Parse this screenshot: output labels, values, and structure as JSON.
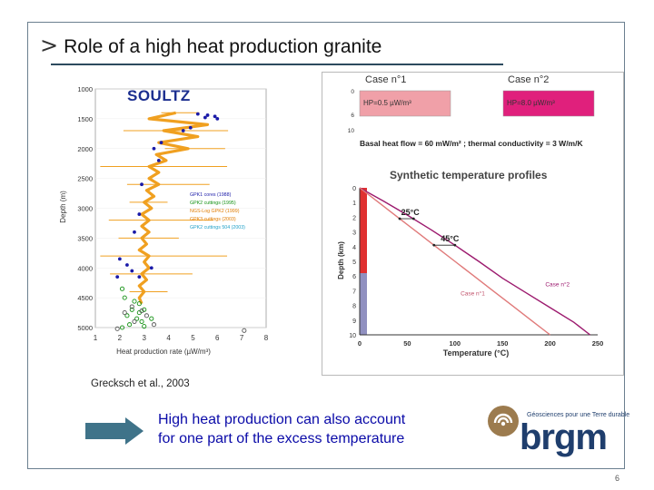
{
  "slide": {
    "title": "Role of a high heat production granite",
    "title_marker": ">",
    "left_figure_label": "SOULTZ",
    "citation": "Grecksch et al., 2003",
    "conclusion_line1": "High heat production can also account",
    "conclusion_line2": "for one part of the excess temperature",
    "page_number": "6"
  },
  "logo": {
    "name": "brgm",
    "tagline": "Géosciences pour une Terre durable",
    "colors": {
      "primary": "#1f3e6d",
      "accent": "#9c7b4e"
    }
  },
  "colors": {
    "accent": "#2c4a5e",
    "arrow": "#3f7389",
    "conclusion_text": "#0a0aa8"
  },
  "chart_data": [
    {
      "type": "scatter",
      "title": "",
      "xlabel": "Heat production rate (µW/m³)",
      "ylabel": "Depth (m)",
      "xlim": [
        1,
        8
      ],
      "ylim": [
        1000,
        5000
      ],
      "yreverse": true,
      "x_ticks": [
        1,
        2,
        3,
        4,
        5,
        6,
        7,
        8
      ],
      "x_tick_labels": [
        "1",
        "2",
        "3",
        "4",
        "5",
        "6",
        "7",
        "8"
      ],
      "y_ticks": [
        1000,
        1500,
        2000,
        2500,
        3000,
        3500,
        4000,
        4500,
        5000
      ],
      "legend": [
        "GPK1 cores (1988)",
        "GPK2 cuttings (1995)",
        "NGS-Log GPK2 (1999)",
        "GPK3 cuttings (2003)",
        "GPK2 cuttings 504 (2003)"
      ],
      "legend_colors": [
        "#1a1aa8",
        "#109010",
        "#e07b00",
        "#e07b00",
        "#20a0c8"
      ],
      "series": [
        {
          "name": "NGS-Log GPK2 (1999)",
          "marker": "line",
          "color": "#f0a020",
          "points": [
            [
              4.3,
              1400
            ],
            [
              3.2,
              1500
            ],
            [
              5.6,
              1600
            ],
            [
              3.8,
              1700
            ],
            [
              5.2,
              1800
            ],
            [
              3.6,
              1900
            ],
            [
              4.8,
              2000
            ],
            [
              3.5,
              2100
            ],
            [
              3.9,
              2200
            ],
            [
              3.2,
              2300
            ],
            [
              3.6,
              2400
            ],
            [
              3.2,
              2500
            ],
            [
              3.6,
              2600
            ],
            [
              3.1,
              2700
            ],
            [
              3.4,
              2800
            ],
            [
              3.0,
              2900
            ],
            [
              3.3,
              3000
            ],
            [
              2.9,
              3100
            ],
            [
              3.2,
              3200
            ],
            [
              2.9,
              3300
            ],
            [
              3.2,
              3400
            ],
            [
              2.9,
              3500
            ],
            [
              3.1,
              3600
            ],
            [
              2.8,
              3700
            ],
            [
              3.2,
              3800
            ],
            [
              3.0,
              3900
            ],
            [
              3.2,
              4000
            ],
            [
              2.9,
              4100
            ],
            [
              3.1,
              4200
            ],
            [
              2.8,
              4300
            ],
            [
              3.0,
              4400
            ],
            [
              2.8,
              4500
            ],
            [
              2.9,
              4600
            ]
          ]
        },
        {
          "name": "GPK1 cores (1988)",
          "marker": "dot",
          "color": "#1a1aa8",
          "points": [
            [
              5.2,
              1420
            ],
            [
              5.6,
              1440
            ],
            [
              5.9,
              1460
            ],
            [
              6.0,
              1500
            ],
            [
              5.5,
              1480
            ],
            [
              4.6,
              1700
            ],
            [
              4.9,
              1650
            ],
            [
              3.7,
              1900
            ],
            [
              3.4,
              2000
            ],
            [
              3.6,
              2200
            ],
            [
              2.9,
              2600
            ],
            [
              2.8,
              3100
            ],
            [
              2.6,
              3400
            ],
            [
              2.0,
              3850
            ],
            [
              2.3,
              3950
            ],
            [
              2.5,
              4050
            ],
            [
              2.8,
              4150
            ],
            [
              3.3,
              4000
            ],
            [
              1.9,
              4150
            ]
          ]
        },
        {
          "name": "GPK2 cuttings (1995)",
          "marker": "circle",
          "color": "#109010",
          "points": [
            [
              2.1,
              4350
            ],
            [
              2.2,
              4500
            ],
            [
              2.6,
              4560
            ],
            [
              2.8,
              4600
            ],
            [
              2.5,
              4700
            ],
            [
              2.8,
              4750
            ],
            [
              2.3,
              4800
            ],
            [
              2.7,
              4850
            ],
            [
              2.9,
              4900
            ],
            [
              2.4,
              4950
            ],
            [
              3.0,
              4980
            ],
            [
              2.1,
              5000
            ],
            [
              3.3,
              4850
            ],
            [
              3.0,
              4700
            ]
          ]
        },
        {
          "name": "GPK2 cuttings 504 (2003)",
          "marker": "circle",
          "color": "#555555",
          "points": [
            [
              2.5,
              4650
            ],
            [
              2.9,
              4720
            ],
            [
              2.2,
              4750
            ],
            [
              3.1,
              4800
            ],
            [
              2.6,
              4900
            ],
            [
              3.4,
              4950
            ],
            [
              7.1,
              5050
            ],
            [
              1.9,
              5020
            ]
          ]
        }
      ]
    },
    {
      "type": "line",
      "title": "Synthetic temperature profiles",
      "xlabel": "Temperature (°C)",
      "ylabel": "Depth (km)",
      "xlim": [
        0,
        250
      ],
      "ylim": [
        0,
        10
      ],
      "yreverse": true,
      "x_ticks": [
        0,
        50,
        100,
        150,
        200,
        250
      ],
      "y_ticks": [
        0,
        1,
        2,
        3,
        4,
        5,
        6,
        7,
        8,
        9,
        10
      ],
      "series": [
        {
          "name": "Case n°2",
          "color": "#9c1a6e",
          "x": [
            0,
            25,
            50,
            75,
            100,
            125,
            150,
            175,
            200,
            225,
            242
          ],
          "y": [
            0,
            0.9,
            1.85,
            2.85,
            3.9,
            5.0,
            6.15,
            7.15,
            8.15,
            9.15,
            10
          ]
        },
        {
          "name": "Case n°1",
          "color": "#e07a7a",
          "x": [
            0,
            20,
            40,
            60,
            80,
            100,
            120,
            140,
            160,
            180,
            200
          ],
          "y": [
            0,
            1.0,
            2.0,
            3.0,
            4.0,
            5.0,
            6.0,
            7.0,
            8.0,
            9.0,
            10
          ]
        }
      ],
      "annotations": [
        "25°C",
        "45°C",
        "Case n°2",
        "Case n°1"
      ],
      "layer_bar_colors": [
        "#e03030",
        "#9090c0"
      ],
      "layer_bar_split_km": 5.8,
      "case1": {
        "title": "Case n°1",
        "hp_label": "HP=0.5 µW/m³",
        "color": "#f0a0a8"
      },
      "case2": {
        "title": "Case n°2",
        "hp_label": "HP=8.0 µW/m³",
        "color": "#e0207c"
      },
      "case_axis_ticks": [
        0,
        6,
        10
      ],
      "boundary_conditions": "Basal heat flow = 60 mW/m² ; thermal conductivity = 3 W/m/K"
    }
  ]
}
